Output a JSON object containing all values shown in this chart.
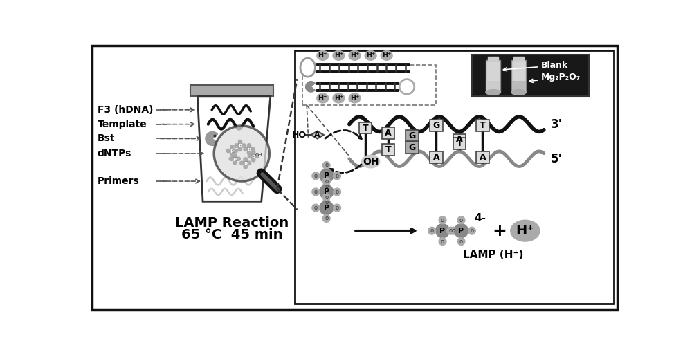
{
  "bg_color": "#ffffff",
  "title_left": "LAMP Reaction",
  "title_left2": "65 °C  45 min",
  "labels_left": [
    "F3 (hDNA)",
    "Template",
    "Bst",
    "dNTPs",
    "Primers"
  ],
  "label_right1": "Blank",
  "label_right2": "Mg₂P₂O₇",
  "label_3prime": "3'",
  "label_5prime": "5'",
  "lamp_label": "LAMP (H⁺)",
  "charge_label": "4-"
}
